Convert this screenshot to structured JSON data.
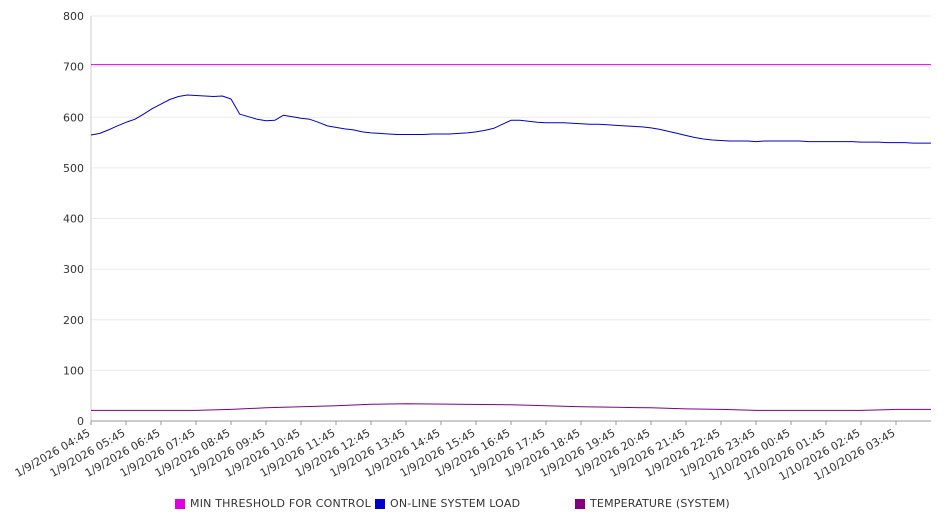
{
  "chart_data": {
    "type": "line",
    "title": "",
    "xlabel": "",
    "ylabel": "",
    "ylim": [
      0,
      800
    ],
    "yticks": [
      0,
      100,
      200,
      300,
      400,
      500,
      600,
      700,
      800
    ],
    "grid": true,
    "legend_position": "bottom",
    "x_tick_labels": [
      "1/9/2026 04:45",
      "1/9/2026 05:45",
      "1/9/2026 06:45",
      "1/9/2026 07:45",
      "1/9/2026 08:45",
      "1/9/2026 09:45",
      "1/9/2026 10:45",
      "1/9/2026 11:45",
      "1/9/2026 12:45",
      "1/9/2026 13:45",
      "1/9/2026 14:45",
      "1/9/2026 15:45",
      "1/9/2026 16:45",
      "1/9/2026 17:45",
      "1/9/2026 18:45",
      "1/9/2026 19:45",
      "1/9/2026 20:45",
      "1/9/2026 21:45",
      "1/9/2026 22:45",
      "1/9/2026 23:45",
      "1/10/2026 00:45",
      "1/10/2026 01:45",
      "1/10/2026 02:45",
      "1/10/2026 03:45"
    ],
    "x_range": [
      "1/9/2026 04:45",
      "1/10/2026 04:45"
    ],
    "series": [
      {
        "name": "MIN THRESHOLD FOR CONTROL",
        "color": "#e000e0",
        "x": [
          "1/9/2026 04:45",
          "1/10/2026 04:45"
        ],
        "y": [
          704,
          704
        ]
      },
      {
        "name": "ON-LINE SYSTEM LOAD",
        "color": "#0000cc",
        "x": [
          "1/9/2026 04:45",
          "1/9/2026 05:00",
          "1/9/2026 05:15",
          "1/9/2026 05:30",
          "1/9/2026 05:45",
          "1/9/2026 06:00",
          "1/9/2026 06:15",
          "1/9/2026 06:30",
          "1/9/2026 06:45",
          "1/9/2026 07:00",
          "1/9/2026 07:15",
          "1/9/2026 07:30",
          "1/9/2026 07:45",
          "1/9/2026 08:00",
          "1/9/2026 08:15",
          "1/9/2026 08:30",
          "1/9/2026 08:45",
          "1/9/2026 09:00",
          "1/9/2026 09:15",
          "1/9/2026 09:30",
          "1/9/2026 09:45",
          "1/9/2026 10:00",
          "1/9/2026 10:15",
          "1/9/2026 10:30",
          "1/9/2026 10:45",
          "1/9/2026 11:00",
          "1/9/2026 11:15",
          "1/9/2026 11:30",
          "1/9/2026 11:45",
          "1/9/2026 12:00",
          "1/9/2026 12:15",
          "1/9/2026 12:30",
          "1/9/2026 12:45",
          "1/9/2026 13:00",
          "1/9/2026 13:15",
          "1/9/2026 13:30",
          "1/9/2026 13:45",
          "1/9/2026 14:00",
          "1/9/2026 14:15",
          "1/9/2026 14:30",
          "1/9/2026 14:45",
          "1/9/2026 15:00",
          "1/9/2026 15:15",
          "1/9/2026 15:30",
          "1/9/2026 15:45",
          "1/9/2026 16:00",
          "1/9/2026 16:15",
          "1/9/2026 16:30",
          "1/9/2026 16:45",
          "1/9/2026 17:00",
          "1/9/2026 17:15",
          "1/9/2026 17:30",
          "1/9/2026 17:45",
          "1/9/2026 18:00",
          "1/9/2026 18:15",
          "1/9/2026 18:30",
          "1/9/2026 18:45",
          "1/9/2026 19:00",
          "1/9/2026 19:15",
          "1/9/2026 19:30",
          "1/9/2026 19:45",
          "1/9/2026 20:00",
          "1/9/2026 20:15",
          "1/9/2026 20:30",
          "1/9/2026 20:45",
          "1/9/2026 21:00",
          "1/9/2026 21:15",
          "1/9/2026 21:30",
          "1/9/2026 21:45",
          "1/9/2026 22:00",
          "1/9/2026 22:15",
          "1/9/2026 22:30",
          "1/9/2026 22:45",
          "1/9/2026 23:00",
          "1/9/2026 23:15",
          "1/9/2026 23:30",
          "1/9/2026 23:45",
          "1/10/2026 00:00",
          "1/10/2026 00:15",
          "1/10/2026 00:30",
          "1/10/2026 00:45",
          "1/10/2026 01:00",
          "1/10/2026 01:15",
          "1/10/2026 01:30",
          "1/10/2026 01:45",
          "1/10/2026 02:00",
          "1/10/2026 02:15",
          "1/10/2026 02:30",
          "1/10/2026 02:45",
          "1/10/2026 03:00",
          "1/10/2026 03:15",
          "1/10/2026 03:30",
          "1/10/2026 03:45",
          "1/10/2026 04:00",
          "1/10/2026 04:15",
          "1/10/2026 04:30",
          "1/10/2026 04:45"
        ],
        "y": [
          565,
          568,
          575,
          583,
          590,
          596,
          606,
          617,
          626,
          635,
          641,
          644,
          643,
          642,
          641,
          642,
          636,
          606,
          601,
          596,
          593,
          594,
          604,
          601,
          598,
          596,
          590,
          583,
          580,
          577,
          575,
          571,
          569,
          568,
          567,
          566,
          566,
          566,
          566,
          567,
          567,
          567,
          568,
          569,
          571,
          574,
          578,
          586,
          594,
          594,
          592,
          590,
          589,
          589,
          589,
          588,
          587,
          586,
          586,
          585,
          584,
          583,
          582,
          581,
          579,
          576,
          572,
          568,
          564,
          560,
          557,
          555,
          554,
          553,
          553,
          553,
          552,
          553,
          553,
          553,
          553,
          553,
          552,
          552,
          552,
          552,
          552,
          552,
          551,
          551,
          551,
          550,
          550,
          550,
          549,
          549,
          549
        ]
      },
      {
        "name": "TEMPERATURE (SYSTEM)",
        "color": "#800080",
        "x": [
          "1/9/2026 04:45",
          "1/9/2026 07:45",
          "1/9/2026 08:45",
          "1/9/2026 09:45",
          "1/9/2026 10:45",
          "1/9/2026 11:45",
          "1/9/2026 12:45",
          "1/9/2026 13:45",
          "1/9/2026 16:45",
          "1/9/2026 17:45",
          "1/9/2026 18:45",
          "1/9/2026 19:45",
          "1/9/2026 20:45",
          "1/9/2026 21:45",
          "1/9/2026 22:45",
          "1/9/2026 23:45",
          "1/10/2026 02:45",
          "1/10/2026 03:45",
          "1/10/2026 04:45"
        ],
        "y": [
          21,
          21,
          23,
          26,
          28,
          30,
          33,
          34,
          32,
          30,
          28,
          27,
          26,
          24,
          23,
          21,
          21,
          23,
          23
        ]
      }
    ]
  }
}
